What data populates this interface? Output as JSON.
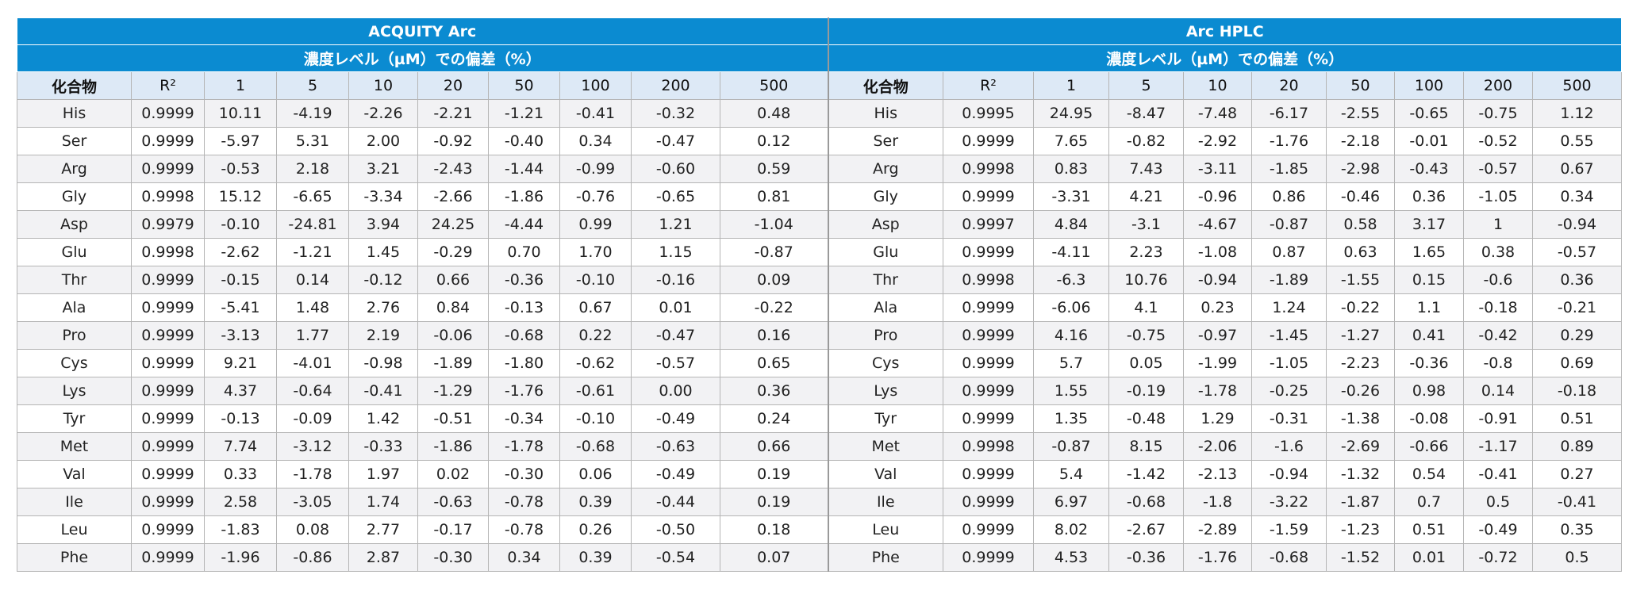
{
  "groups": [
    {
      "name": "ACQUITY Arc",
      "subtitle": "濃度レベル（µM）での偏差（%）",
      "columns": [
        "化合物",
        "R²",
        "1",
        "5",
        "10",
        "20",
        "50",
        "100",
        "200",
        "500"
      ],
      "rows": [
        [
          "His",
          "0.9999",
          "10.11",
          "-4.19",
          "-2.26",
          "-2.21",
          "-1.21",
          "-0.41",
          "-0.32",
          "0.48"
        ],
        [
          "Ser",
          "0.9999",
          "-5.97",
          "5.31",
          "2.00",
          "-0.92",
          "-0.40",
          "0.34",
          "-0.47",
          "0.12"
        ],
        [
          "Arg",
          "0.9999",
          "-0.53",
          "2.18",
          "3.21",
          "-2.43",
          "-1.44",
          "-0.99",
          "-0.60",
          "0.59"
        ],
        [
          "Gly",
          "0.9998",
          "15.12",
          "-6.65",
          "-3.34",
          "-2.66",
          "-1.86",
          "-0.76",
          "-0.65",
          "0.81"
        ],
        [
          "Asp",
          "0.9979",
          "-0.10",
          "-24.81",
          "3.94",
          "24.25",
          "-4.44",
          "0.99",
          "1.21",
          "-1.04"
        ],
        [
          "Glu",
          "0.9998",
          "-2.62",
          "-1.21",
          "1.45",
          "-0.29",
          "0.70",
          "1.70",
          "1.15",
          "-0.87"
        ],
        [
          "Thr",
          "0.9999",
          "-0.15",
          "0.14",
          "-0.12",
          "0.66",
          "-0.36",
          "-0.10",
          "-0.16",
          "0.09"
        ],
        [
          "Ala",
          "0.9999",
          "-5.41",
          "1.48",
          "2.76",
          "0.84",
          "-0.13",
          "0.67",
          "0.01",
          "-0.22"
        ],
        [
          "Pro",
          "0.9999",
          "-3.13",
          "1.77",
          "2.19",
          "-0.06",
          "-0.68",
          "0.22",
          "-0.47",
          "0.16"
        ],
        [
          "Cys",
          "0.9999",
          "9.21",
          "-4.01",
          "-0.98",
          "-1.89",
          "-1.80",
          "-0.62",
          "-0.57",
          "0.65"
        ],
        [
          "Lys",
          "0.9999",
          "4.37",
          "-0.64",
          "-0.41",
          "-1.29",
          "-1.76",
          "-0.61",
          "0.00",
          "0.36"
        ],
        [
          "Tyr",
          "0.9999",
          "-0.13",
          "-0.09",
          "1.42",
          "-0.51",
          "-0.34",
          "-0.10",
          "-0.49",
          "0.24"
        ],
        [
          "Met",
          "0.9999",
          "7.74",
          "-3.12",
          "-0.33",
          "-1.86",
          "-1.78",
          "-0.68",
          "-0.63",
          "0.66"
        ],
        [
          "Val",
          "0.9999",
          "0.33",
          "-1.78",
          "1.97",
          "0.02",
          "-0.30",
          "0.06",
          "-0.49",
          "0.19"
        ],
        [
          "Ile",
          "0.9999",
          "2.58",
          "-3.05",
          "1.74",
          "-0.63",
          "-0.78",
          "0.39",
          "-0.44",
          "0.19"
        ],
        [
          "Leu",
          "0.9999",
          "-1.83",
          "0.08",
          "2.77",
          "-0.17",
          "-0.78",
          "0.26",
          "-0.50",
          "0.18"
        ],
        [
          "Phe",
          "0.9999",
          "-1.96",
          "-0.86",
          "2.87",
          "-0.30",
          "0.34",
          "0.39",
          "-0.54",
          "0.07"
        ]
      ]
    },
    {
      "name": "Arc HPLC",
      "subtitle": "濃度レベル（µM）での偏差（%）",
      "columns": [
        "化合物",
        "R²",
        "1",
        "5",
        "10",
        "20",
        "50",
        "100",
        "200",
        "500"
      ],
      "rows": [
        [
          "His",
          "0.9995",
          "24.95",
          "-8.47",
          "-7.48",
          "-6.17",
          "-2.55",
          "-0.65",
          "-0.75",
          "1.12"
        ],
        [
          "Ser",
          "0.9999",
          "7.65",
          "-0.82",
          "-2.92",
          "-1.76",
          "-2.18",
          "-0.01",
          "-0.52",
          "0.55"
        ],
        [
          "Arg",
          "0.9998",
          "0.83",
          "7.43",
          "-3.11",
          "-1.85",
          "-2.98",
          "-0.43",
          "-0.57",
          "0.67"
        ],
        [
          "Gly",
          "0.9999",
          "-3.31",
          "4.21",
          "-0.96",
          "0.86",
          "-0.46",
          "0.36",
          "-1.05",
          "0.34"
        ],
        [
          "Asp",
          "0.9997",
          "4.84",
          "-3.1",
          "-4.67",
          "-0.87",
          "0.58",
          "3.17",
          "1",
          "-0.94"
        ],
        [
          "Glu",
          "0.9999",
          "-4.11",
          "2.23",
          "-1.08",
          "0.87",
          "0.63",
          "1.65",
          "0.38",
          "-0.57"
        ],
        [
          "Thr",
          "0.9998",
          "-6.3",
          "10.76",
          "-0.94",
          "-1.89",
          "-1.55",
          "0.15",
          "-0.6",
          "0.36"
        ],
        [
          "Ala",
          "0.9999",
          "-6.06",
          "4.1",
          "0.23",
          "1.24",
          "-0.22",
          "1.1",
          "-0.18",
          "-0.21"
        ],
        [
          "Pro",
          "0.9999",
          "4.16",
          "-0.75",
          "-0.97",
          "-1.45",
          "-1.27",
          "0.41",
          "-0.42",
          "0.29"
        ],
        [
          "Cys",
          "0.9999",
          "5.7",
          "0.05",
          "-1.99",
          "-1.05",
          "-2.23",
          "-0.36",
          "-0.8",
          "0.69"
        ],
        [
          "Lys",
          "0.9999",
          "1.55",
          "-0.19",
          "-1.78",
          "-0.25",
          "-0.26",
          "0.98",
          "0.14",
          "-0.18"
        ],
        [
          "Tyr",
          "0.9999",
          "1.35",
          "-0.48",
          "1.29",
          "-0.31",
          "-1.38",
          "-0.08",
          "-0.91",
          "0.51"
        ],
        [
          "Met",
          "0.9998",
          "-0.87",
          "8.15",
          "-2.06",
          "-1.6",
          "-2.69",
          "-0.66",
          "-1.17",
          "0.89"
        ],
        [
          "Val",
          "0.9999",
          "5.4",
          "-1.42",
          "-2.13",
          "-0.94",
          "-1.32",
          "0.54",
          "-0.41",
          "0.27"
        ],
        [
          "Ile",
          "0.9999",
          "6.97",
          "-0.68",
          "-1.8",
          "-3.22",
          "-1.87",
          "0.7",
          "0.5",
          "-0.41"
        ],
        [
          "Leu",
          "0.9999",
          "8.02",
          "-2.67",
          "-2.89",
          "-1.59",
          "-1.23",
          "0.51",
          "-0.49",
          "0.35"
        ],
        [
          "Phe",
          "0.9999",
          "4.53",
          "-0.36",
          "-1.76",
          "-0.68",
          "-1.52",
          "0.01",
          "-0.72",
          "0.5"
        ]
      ]
    }
  ]
}
